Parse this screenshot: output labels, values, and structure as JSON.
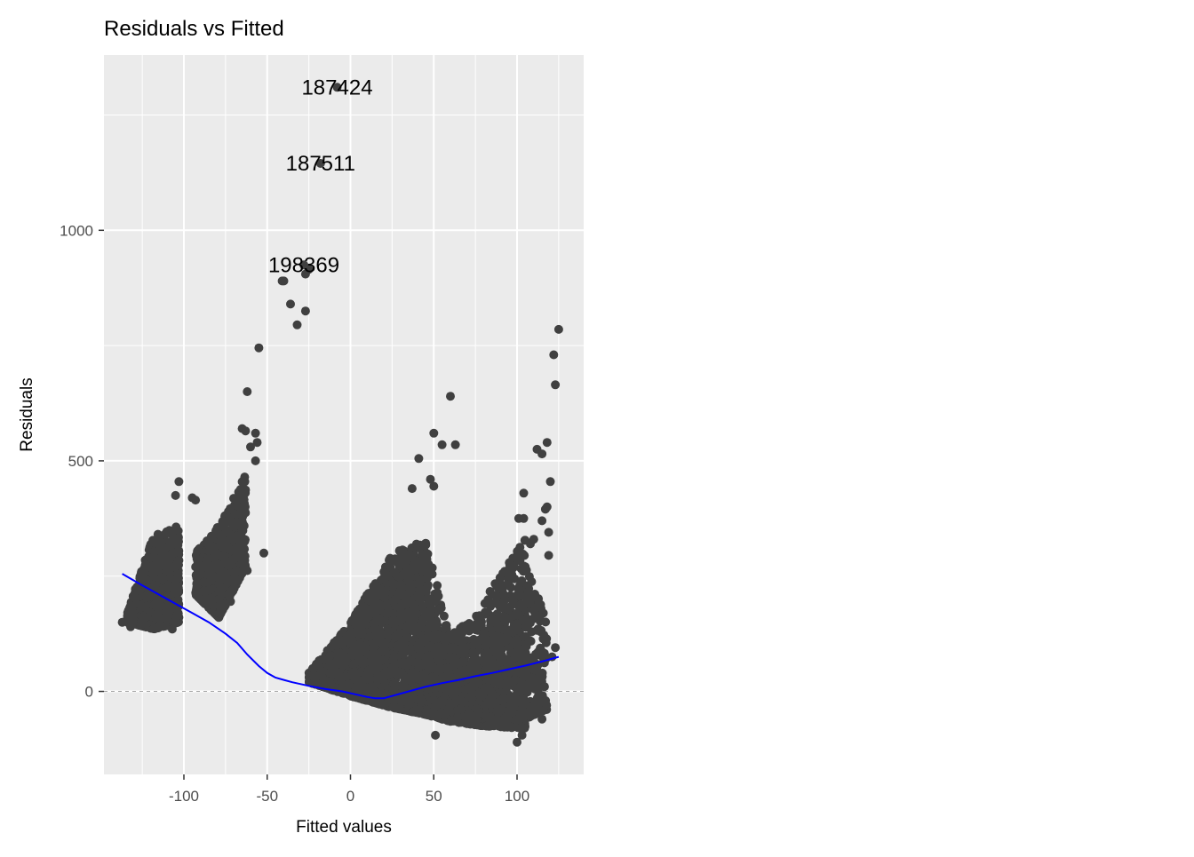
{
  "chart_data": {
    "type": "scatter",
    "title": "Residuals vs Fitted",
    "xlabel": "Fitted values",
    "ylabel": "Residuals",
    "xlim": [
      -148,
      140
    ],
    "ylim": [
      -180,
      1380
    ],
    "x_ticks": [
      -100,
      -50,
      0,
      50,
      100
    ],
    "x_tick_labels": [
      "-100",
      "-50",
      "0",
      "50",
      "100"
    ],
    "y_ticks": [
      0,
      500,
      1000
    ],
    "y_tick_labels": [
      "0",
      "500",
      "1000"
    ],
    "grid": true,
    "reference_line": {
      "y": 0,
      "style": "dashed"
    },
    "point_color": "#404040",
    "smooth_color": "#0000ff",
    "panel_color": "#ebebeb",
    "labeled_points": [
      {
        "label": "187424",
        "x": -8,
        "y": 1310
      },
      {
        "label": "187511",
        "x": -18,
        "y": 1145
      },
      {
        "label": "198369",
        "x": -28,
        "y": 925
      }
    ],
    "outliers": [
      [
        -27,
        905
      ],
      [
        -25,
        915
      ],
      [
        -40,
        890
      ],
      [
        -41,
        890
      ],
      [
        -36,
        840
      ],
      [
        -32,
        795
      ],
      [
        -27,
        825
      ],
      [
        -55,
        745
      ],
      [
        -62,
        650
      ],
      [
        -65,
        570
      ],
      [
        -63,
        565
      ],
      [
        -57,
        560
      ],
      [
        -56,
        540
      ],
      [
        -60,
        530
      ],
      [
        -57,
        500
      ],
      [
        -103,
        455
      ],
      [
        -105,
        425
      ],
      [
        -95,
        420
      ],
      [
        -93,
        415
      ],
      [
        -52,
        300
      ],
      [
        -62,
        262
      ],
      [
        -72,
        195
      ],
      [
        -107,
        135
      ],
      [
        -132,
        140
      ],
      [
        -137,
        150
      ],
      [
        60,
        640
      ],
      [
        50,
        560
      ],
      [
        63,
        535
      ],
      [
        55,
        535
      ],
      [
        41,
        505
      ],
      [
        48,
        460
      ],
      [
        50,
        445
      ],
      [
        37,
        440
      ],
      [
        125,
        785
      ],
      [
        122,
        730
      ],
      [
        123,
        665
      ],
      [
        118,
        540
      ],
      [
        112,
        525
      ],
      [
        115,
        515
      ],
      [
        120,
        455
      ],
      [
        104,
        430
      ],
      [
        118,
        400
      ],
      [
        117,
        395
      ],
      [
        115,
        370
      ],
      [
        101,
        375
      ],
      [
        104,
        375
      ],
      [
        119,
        345
      ],
      [
        108,
        320
      ],
      [
        110,
        330
      ],
      [
        119,
        295
      ],
      [
        123,
        95
      ],
      [
        121,
        75
      ],
      [
        94,
        -60
      ],
      [
        102,
        -50
      ],
      [
        108,
        -40
      ],
      [
        115,
        -60
      ],
      [
        102,
        -80
      ],
      [
        103,
        -95
      ],
      [
        100,
        -110
      ],
      [
        51,
        -95
      ],
      [
        63,
        70
      ],
      [
        65,
        60
      ],
      [
        68,
        110
      ]
    ],
    "clusters": [
      {
        "x": [
          -134,
          -118
        ],
        "y_base": [
          150,
          135
        ],
        "y_top": [
          170,
          340
        ],
        "n": 520
      },
      {
        "x": [
          -118,
          -103
        ],
        "y_base": [
          135,
          150
        ],
        "y_top": [
          340,
          360
        ],
        "n": 420
      },
      {
        "x": [
          -93,
          -79
        ],
        "y_base": [
          210,
          160
        ],
        "y_top": [
          300,
          360
        ],
        "n": 420
      },
      {
        "x": [
          -79,
          -63
        ],
        "y_base": [
          160,
          270
        ],
        "y_top": [
          360,
          470
        ],
        "n": 460
      },
      {
        "x": [
          -25,
          0
        ],
        "y_base": [
          20,
          -10
        ],
        "y_top": [
          40,
          150
        ],
        "n": 420
      },
      {
        "x": [
          0,
          25
        ],
        "y_base": [
          -10,
          -35
        ],
        "y_top": [
          150,
          300
        ],
        "n": 900
      },
      {
        "x": [
          25,
          45
        ],
        "y_base": [
          -35,
          -50
        ],
        "y_top": [
          300,
          330
        ],
        "n": 700
      },
      {
        "x": [
          45,
          60
        ],
        "y_base": [
          -50,
          -65
        ],
        "y_top": [
          330,
          120
        ],
        "n": 380
      },
      {
        "x": [
          60,
          80
        ],
        "y_base": [
          -65,
          -75
        ],
        "y_top": [
          120,
          180
        ],
        "n": 380
      },
      {
        "x": [
          80,
          105
        ],
        "y_base": [
          -75,
          -80
        ],
        "y_top": [
          200,
          330
        ],
        "n": 620
      },
      {
        "x": [
          105,
          118
        ],
        "y_base": [
          -60,
          -40
        ],
        "y_top": [
          280,
          150
        ],
        "n": 160
      }
    ],
    "smooth_line": {
      "x": [
        -137,
        -125,
        -115,
        -105,
        -95,
        -85,
        -75,
        -68,
        -62,
        -55,
        -50,
        -45,
        -40,
        -35,
        -25,
        -15,
        -5,
        5,
        10,
        15,
        20,
        25,
        35,
        45,
        55,
        65,
        75,
        85,
        95,
        105,
        115,
        125
      ],
      "y": [
        255,
        230,
        210,
        190,
        170,
        150,
        125,
        105,
        80,
        55,
        40,
        30,
        25,
        20,
        12,
        5,
        0,
        -8,
        -12,
        -15,
        -15,
        -10,
        0,
        10,
        18,
        25,
        33,
        40,
        48,
        56,
        65,
        75
      ]
    }
  }
}
